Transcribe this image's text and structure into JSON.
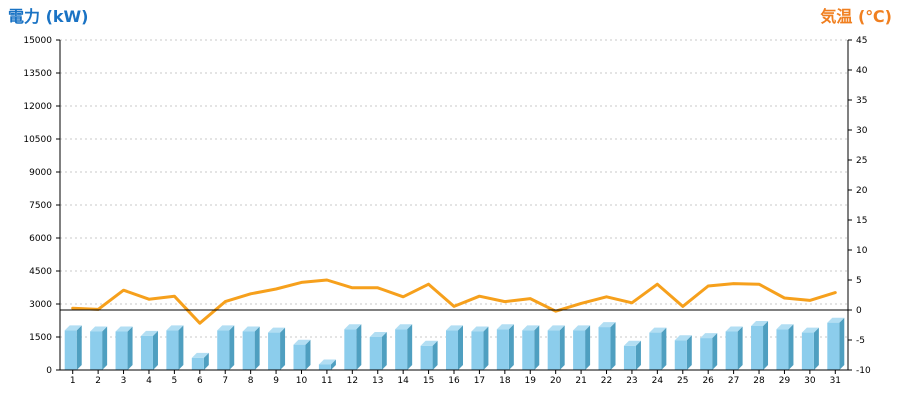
{
  "chart_data": {
    "type": "bar",
    "left_axis_title": "電力 (kW)",
    "right_axis_title": "気温 (℃)",
    "categories": [
      "1",
      "2",
      "3",
      "4",
      "5",
      "6",
      "7",
      "8",
      "9",
      "10",
      "11",
      "12",
      "13",
      "14",
      "15",
      "16",
      "17",
      "18",
      "19",
      "20",
      "21",
      "22",
      "23",
      "24",
      "25",
      "26",
      "27",
      "28",
      "29",
      "30",
      "31"
    ],
    "y_left": {
      "min": 0,
      "max": 15000,
      "ticks": [
        0,
        1500,
        3000,
        4500,
        6000,
        7500,
        9000,
        10500,
        12000,
        13500,
        15000
      ]
    },
    "y_right": {
      "min": -10,
      "max": 45,
      "ticks": [
        -10,
        -5,
        0,
        5,
        10,
        15,
        20,
        25,
        30,
        35,
        40,
        45
      ]
    },
    "series": [
      {
        "kind": "bar",
        "axis": "left",
        "values": [
          1800,
          1750,
          1750,
          1550,
          1800,
          550,
          1800,
          1750,
          1700,
          1150,
          250,
          1850,
          1500,
          1850,
          1100,
          1800,
          1750,
          1850,
          1800,
          1800,
          1800,
          1950,
          1100,
          1700,
          1350,
          1450,
          1750,
          2000,
          1850,
          1700,
          2150
        ]
      },
      {
        "kind": "line",
        "axis": "right",
        "values": [
          0.3,
          0.1,
          3.3,
          1.8,
          2.3,
          -2.2,
          1.4,
          2.7,
          3.5,
          4.6,
          5.0,
          3.7,
          3.7,
          2.2,
          4.3,
          0.6,
          2.3,
          1.4,
          1.9,
          -0.2,
          1.1,
          2.2,
          1.2,
          4.3,
          0.6,
          4.0,
          4.4,
          4.3,
          2.0,
          1.6,
          2.9
        ]
      }
    ],
    "colors": {
      "bar_front": "#8ccdec",
      "bar_side": "#4f9fc0",
      "bar_top": "#b2def3",
      "line": "#f6a01c",
      "left_title": "#1a73c4",
      "right_title": "#f07f1f",
      "grid": "#c8c8c8",
      "axis": "#000000"
    },
    "grid": true
  }
}
